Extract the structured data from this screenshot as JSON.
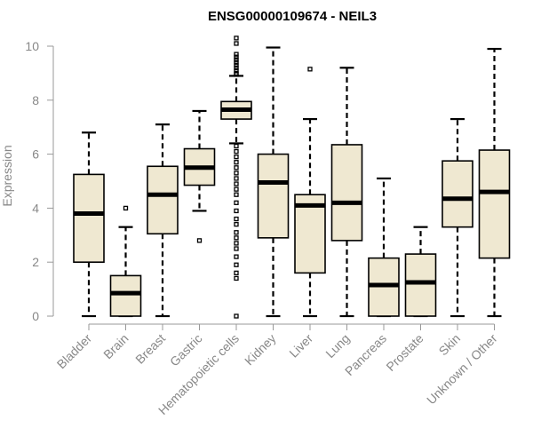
{
  "chart_data": {
    "type": "box",
    "title": "ENSG00000109674 - NEIL3",
    "xlabel": "",
    "ylabel": "Expression",
    "ylim": [
      0,
      10
    ],
    "yticks": [
      0,
      2,
      4,
      6,
      8,
      10
    ],
    "box_fill": "#efe8d1",
    "categories": [
      "Bladder",
      "Brain",
      "Breast",
      "Gastric",
      "Hematopoietic cells",
      "Kidney",
      "Liver",
      "Lung",
      "Pancreas",
      "Prostate",
      "Skin",
      "Unknown / Other"
    ],
    "boxes": [
      {
        "min": 0.0,
        "q1": 2.0,
        "median": 3.8,
        "q3": 5.25,
        "max": 6.8,
        "outliers": []
      },
      {
        "min": 0.0,
        "q1": 0.0,
        "median": 0.85,
        "q3": 1.5,
        "max": 3.3,
        "outliers": [
          4.0
        ]
      },
      {
        "min": 0.0,
        "q1": 3.05,
        "median": 4.5,
        "q3": 5.55,
        "max": 7.1,
        "outliers": []
      },
      {
        "min": 3.9,
        "q1": 4.85,
        "median": 5.5,
        "q3": 6.2,
        "max": 7.6,
        "outliers": [
          2.8
        ]
      },
      {
        "min": 6.4,
        "q1": 7.3,
        "median": 7.65,
        "q3": 7.95,
        "max": 8.9,
        "outliers": [
          10.3,
          10.1,
          9.7,
          9.6,
          9.5,
          9.4,
          9.3,
          9.2,
          9.1,
          9.0,
          8.95,
          6.3,
          6.1,
          5.9,
          5.7,
          5.5,
          5.3,
          5.1,
          4.9,
          4.7,
          4.5,
          4.2,
          3.9,
          3.6,
          3.4,
          3.1,
          2.9,
          2.7,
          2.5,
          2.2,
          1.9,
          1.6,
          1.4,
          0.0
        ]
      },
      {
        "min": 0.0,
        "q1": 2.9,
        "median": 4.95,
        "q3": 6.0,
        "max": 9.95,
        "outliers": []
      },
      {
        "min": 0.0,
        "q1": 1.6,
        "median": 4.1,
        "q3": 4.5,
        "max": 7.3,
        "outliers": [
          9.15
        ]
      },
      {
        "min": 0.0,
        "q1": 2.8,
        "median": 4.2,
        "q3": 6.35,
        "max": 9.2,
        "outliers": []
      },
      {
        "min": 0.0,
        "q1": 0.0,
        "median": 1.15,
        "q3": 2.15,
        "max": 5.1,
        "outliers": []
      },
      {
        "min": 0.0,
        "q1": 0.0,
        "median": 1.25,
        "q3": 2.3,
        "max": 3.3,
        "outliers": []
      },
      {
        "min": 0.0,
        "q1": 3.3,
        "median": 4.35,
        "q3": 5.75,
        "max": 7.3,
        "outliers": []
      },
      {
        "min": 0.0,
        "q1": 2.15,
        "median": 4.6,
        "q3": 6.15,
        "max": 9.9,
        "outliers": []
      }
    ]
  }
}
